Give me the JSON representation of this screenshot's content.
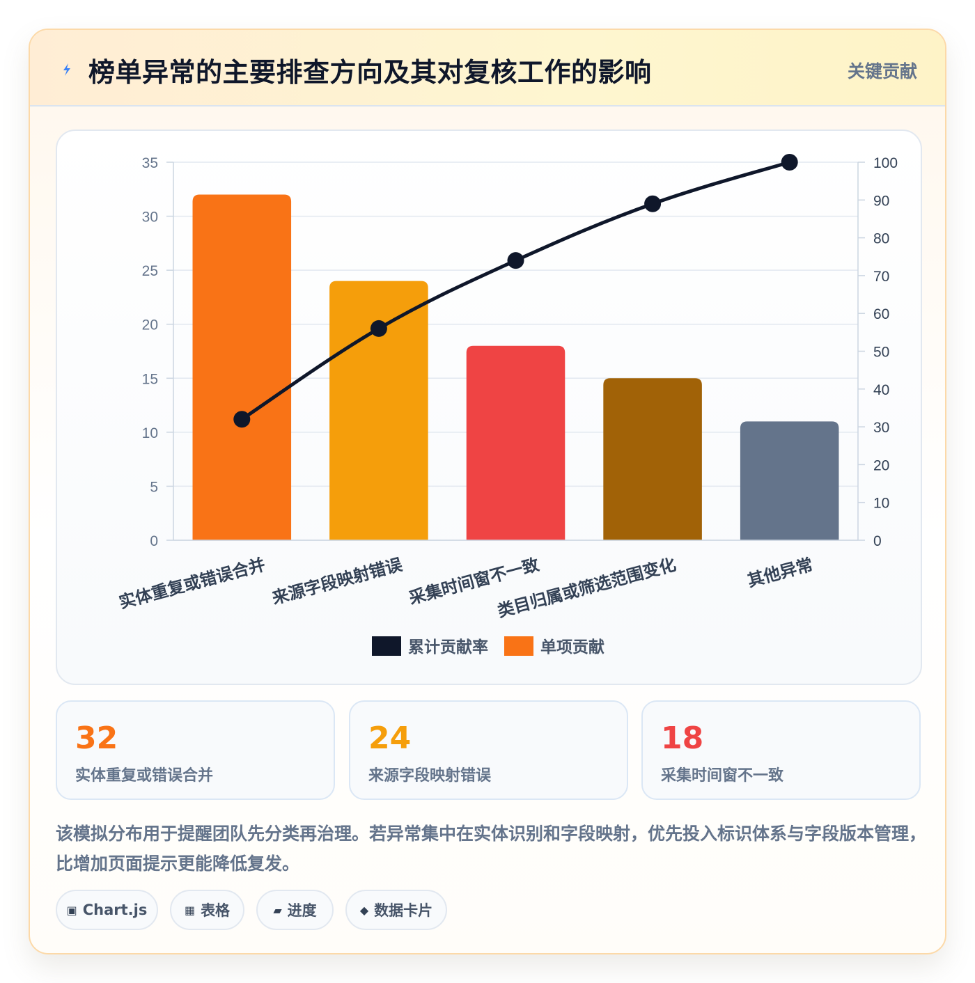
{
  "header": {
    "title": "榜单异常的主要排查方向及其对复核工作的影响",
    "tag": "关键贡献",
    "icon": "lightning-icon"
  },
  "colors": {
    "bar_colors": [
      "#f97316",
      "#f59e0b",
      "#ef4444",
      "#a16207",
      "#64748b"
    ],
    "line_color": "#0f172a",
    "accent_orange": "#f97316",
    "accent_amber": "#f59e0b",
    "accent_red": "#ef4444"
  },
  "chart_data": {
    "type": "bar",
    "categories": [
      "实体重复或错误合并",
      "来源字段映射错误",
      "采集时间窗不一致",
      "类目归属或筛选范围变化",
      "其他异常"
    ],
    "series": [
      {
        "name": "单项贡献",
        "type": "bar",
        "axis": "left",
        "values": [
          32,
          24,
          18,
          15,
          11
        ]
      },
      {
        "name": "累计贡献率",
        "type": "line",
        "axis": "right",
        "values": [
          32,
          56,
          74,
          89,
          100
        ]
      }
    ],
    "ylim_left": [
      0,
      35
    ],
    "yticks_left": [
      "0",
      "5",
      "10",
      "15",
      "20",
      "25",
      "30",
      "35"
    ],
    "ylim_right": [
      0,
      100
    ],
    "yticks_right": [
      "0",
      "10",
      "20",
      "30",
      "40",
      "50",
      "60",
      "70",
      "80",
      "90",
      "100"
    ],
    "grid": true,
    "legend_position": "bottom",
    "legend": [
      "累计贡献率",
      "单项贡献"
    ]
  },
  "stats": [
    {
      "value": "32",
      "label": "实体重复或错误合并",
      "color": "#f97316"
    },
    {
      "value": "24",
      "label": "来源字段映射错误",
      "color": "#f59e0b"
    },
    {
      "value": "18",
      "label": "采集时间窗不一致",
      "color": "#ef4444"
    }
  ],
  "description": "该模拟分布用于提醒团队先分类再治理。若异常集中在实体识别和字段映射，优先投入标识体系与字段版本管理，比增加页面提示更能降低复发。",
  "pills": [
    {
      "icon": "▣",
      "icon_name": "chart-icon",
      "label": "Chart.js"
    },
    {
      "icon": "▦",
      "icon_name": "table-icon",
      "label": "表格"
    },
    {
      "icon": "▰",
      "icon_name": "progress-icon",
      "label": "进度"
    },
    {
      "icon": "◆",
      "icon_name": "diamond-icon",
      "label": "数据卡片"
    }
  ]
}
